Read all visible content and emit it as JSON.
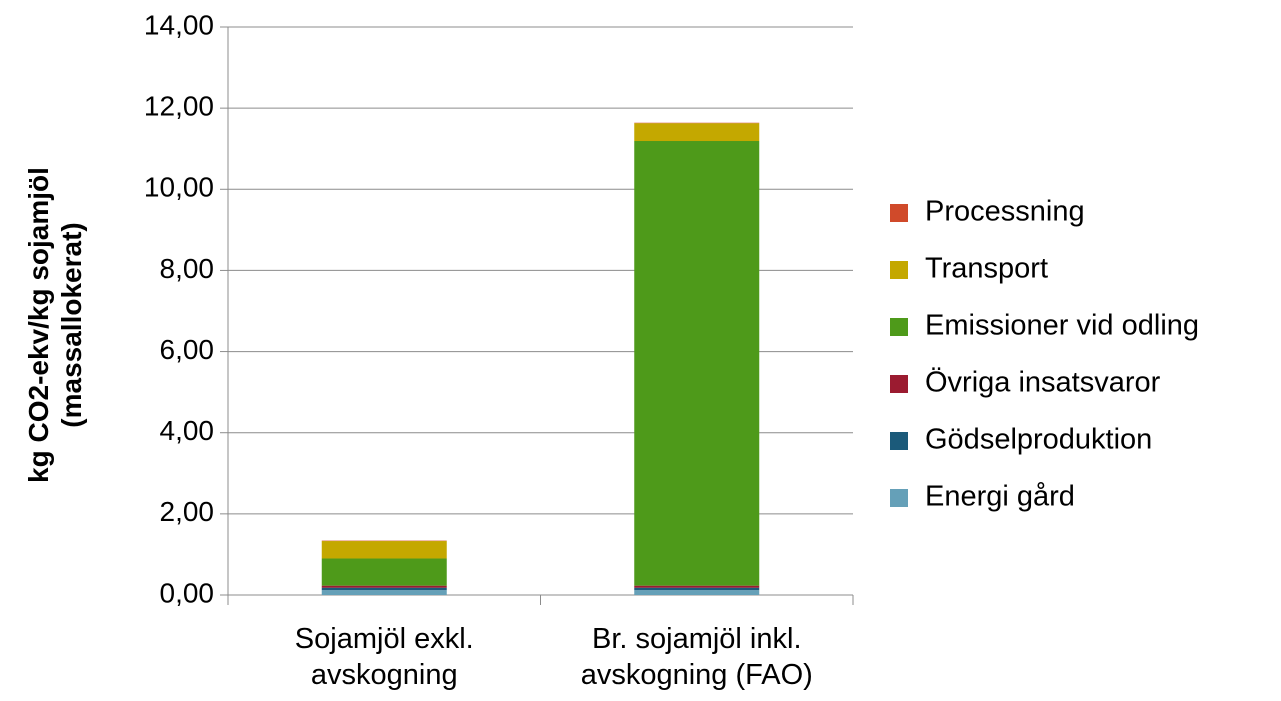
{
  "chart_data": {
    "type": "stacked_bar",
    "y_label": "kg CO2-ekv/kg sojamjöl (massallokerat)",
    "categories": [
      "Sojamjöl exkl. avskogning",
      "Br. sojamjöl inkl. avskogning (FAO)"
    ],
    "series": [
      {
        "name": "Energi gård",
        "color": "#65a0b8",
        "values": [
          0.12,
          0.12
        ]
      },
      {
        "name": "Gödselproduktion",
        "color": "#1b5a7a",
        "values": [
          0.06,
          0.06
        ]
      },
      {
        "name": "Övriga insatsvaror",
        "color": "#9b1b30",
        "values": [
          0.05,
          0.05
        ]
      },
      {
        "name": "Emissioner vid odling",
        "color": "#4e9a1a",
        "values": [
          0.67,
          10.96
        ]
      },
      {
        "name": "Transport",
        "color": "#c4a800",
        "values": [
          0.43,
          0.44
        ]
      },
      {
        "name": "Processning",
        "color": "#d04a2a",
        "values": [
          0.01,
          0.01
        ]
      }
    ],
    "ylim": [
      0,
      14
    ],
    "yticks": [
      {
        "value": 0,
        "label": "0,00"
      },
      {
        "value": 2,
        "label": "2,00"
      },
      {
        "value": 4,
        "label": "4,00"
      },
      {
        "value": 6,
        "label": "6,00"
      },
      {
        "value": 8,
        "label": "8,00"
      },
      {
        "value": 10,
        "label": "10,00"
      },
      {
        "value": 12,
        "label": "12,00"
      },
      {
        "value": 14,
        "label": "14,00"
      }
    ],
    "grid": true,
    "legend": "right"
  }
}
